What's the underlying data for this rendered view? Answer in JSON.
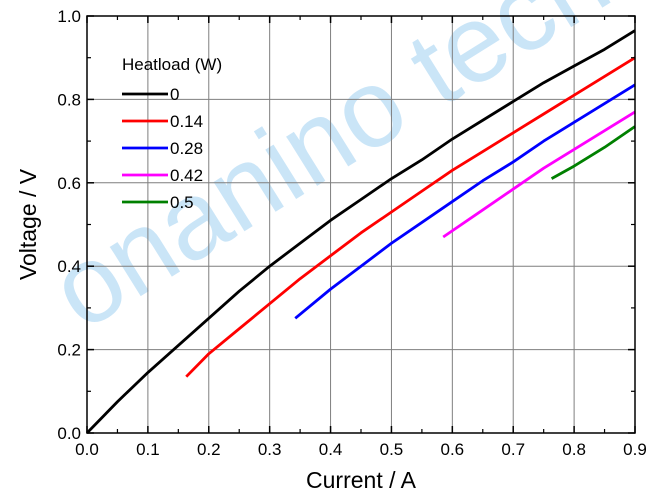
{
  "chart_data": {
    "type": "line",
    "title": "",
    "xlabel": "Current / A",
    "ylabel": "Voltage / V",
    "xlim": [
      0.0,
      0.9
    ],
    "ylim": [
      0.0,
      1.0
    ],
    "x_ticks": [
      0.0,
      0.1,
      0.2,
      0.3,
      0.4,
      0.5,
      0.6,
      0.7,
      0.8,
      0.9
    ],
    "x_tick_labels": [
      "0.0",
      "0.1",
      "0.2",
      "0.3",
      "0.4",
      "0.5",
      "0.6",
      "0.7",
      "0.8",
      "0.9"
    ],
    "y_ticks": [
      0.0,
      0.2,
      0.4,
      0.6,
      0.8,
      1.0
    ],
    "y_tick_labels": [
      "0.0",
      "0.2",
      "0.4",
      "0.6",
      "0.8",
      "1.0"
    ],
    "grid": true,
    "legend": {
      "title": "Heatload (W)",
      "placement": "top-left"
    },
    "series": [
      {
        "name": "0",
        "color": "#000000",
        "x": [
          0.0,
          0.05,
          0.1,
          0.15,
          0.2,
          0.25,
          0.3,
          0.35,
          0.4,
          0.45,
          0.5,
          0.55,
          0.6,
          0.65,
          0.7,
          0.75,
          0.8,
          0.85,
          0.9
        ],
        "y": [
          0.0,
          0.075,
          0.145,
          0.21,
          0.275,
          0.34,
          0.4,
          0.455,
          0.51,
          0.56,
          0.61,
          0.655,
          0.705,
          0.75,
          0.795,
          0.84,
          0.88,
          0.92,
          0.965
        ]
      },
      {
        "name": "0.14",
        "color": "#ff0000",
        "x": [
          0.163,
          0.2,
          0.25,
          0.3,
          0.35,
          0.4,
          0.45,
          0.5,
          0.55,
          0.6,
          0.65,
          0.7,
          0.75,
          0.8,
          0.85,
          0.9
        ],
        "y": [
          0.135,
          0.19,
          0.25,
          0.31,
          0.37,
          0.425,
          0.48,
          0.53,
          0.58,
          0.63,
          0.675,
          0.72,
          0.765,
          0.81,
          0.855,
          0.9
        ]
      },
      {
        "name": "0.28",
        "color": "#0000ff",
        "x": [
          0.342,
          0.4,
          0.45,
          0.5,
          0.55,
          0.6,
          0.65,
          0.7,
          0.75,
          0.8,
          0.85,
          0.9
        ],
        "y": [
          0.275,
          0.345,
          0.4,
          0.455,
          0.505,
          0.555,
          0.605,
          0.65,
          0.7,
          0.745,
          0.79,
          0.835
        ]
      },
      {
        "name": "0.42",
        "color": "#ff00ff",
        "x": [
          0.585,
          0.65,
          0.7,
          0.75,
          0.8,
          0.85,
          0.9
        ],
        "y": [
          0.47,
          0.535,
          0.585,
          0.635,
          0.68,
          0.725,
          0.77
        ]
      },
      {
        "name": "0.5",
        "color": "#008000",
        "x": [
          0.763,
          0.8,
          0.85,
          0.9
        ],
        "y": [
          0.61,
          0.64,
          0.685,
          0.735
        ]
      }
    ]
  },
  "watermark": {
    "text": "onanino technology"
  }
}
